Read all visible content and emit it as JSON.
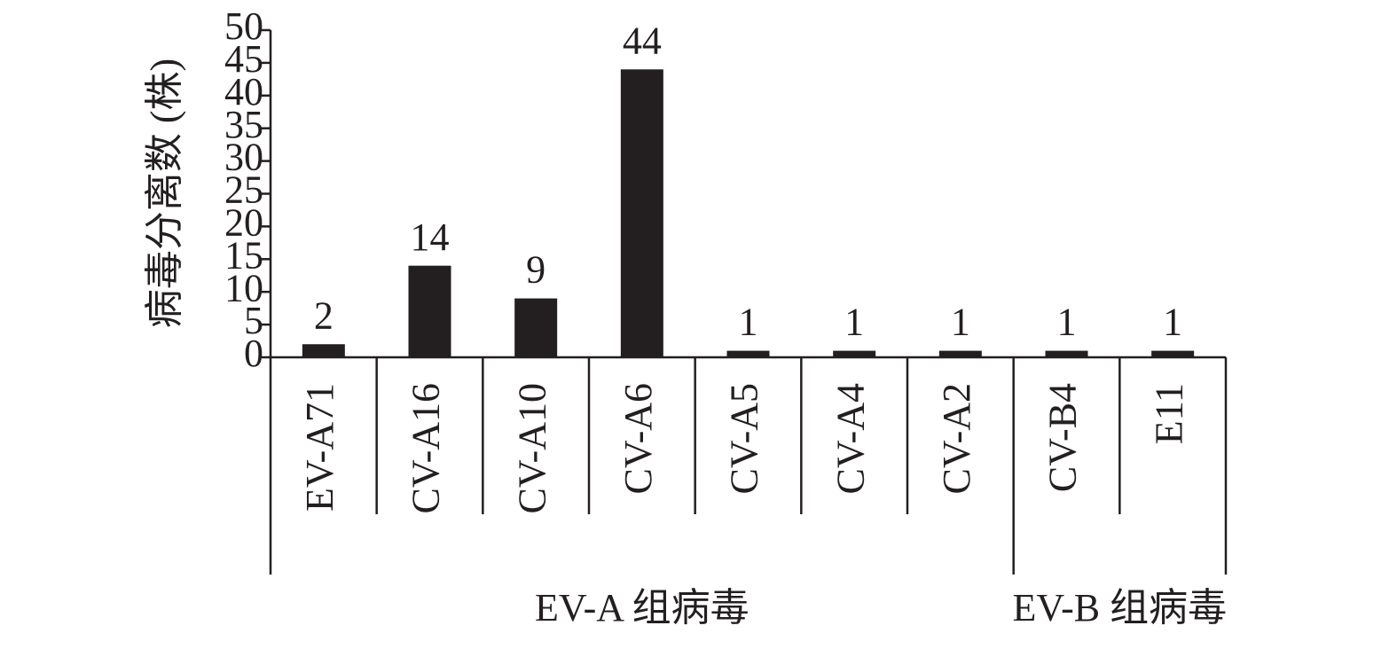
{
  "chart_data": {
    "type": "bar",
    "y_label": "病毒分离数 (株)",
    "categories": [
      "EV-A71",
      "CV-A16",
      "CV-A10",
      "CV-A6",
      "CV-A5",
      "CV-A4",
      "CV-A2",
      "CV-B4",
      "E11"
    ],
    "values": [
      2,
      14,
      9,
      44,
      1,
      1,
      1,
      1,
      1
    ],
    "color": "#231f20",
    "ylim": [
      0,
      50
    ],
    "yticks": [
      0,
      5,
      10,
      15,
      20,
      25,
      30,
      35,
      40,
      45,
      50
    ],
    "groups": [
      {
        "name": "EV-A 组病毒",
        "categories": [
          "EV-A71",
          "CV-A16",
          "CV-A10",
          "CV-A6",
          "CV-A5",
          "CV-A4",
          "CV-A2"
        ]
      },
      {
        "name": "EV-B 组病毒",
        "categories": [
          "CV-B4",
          "E11"
        ]
      }
    ]
  }
}
